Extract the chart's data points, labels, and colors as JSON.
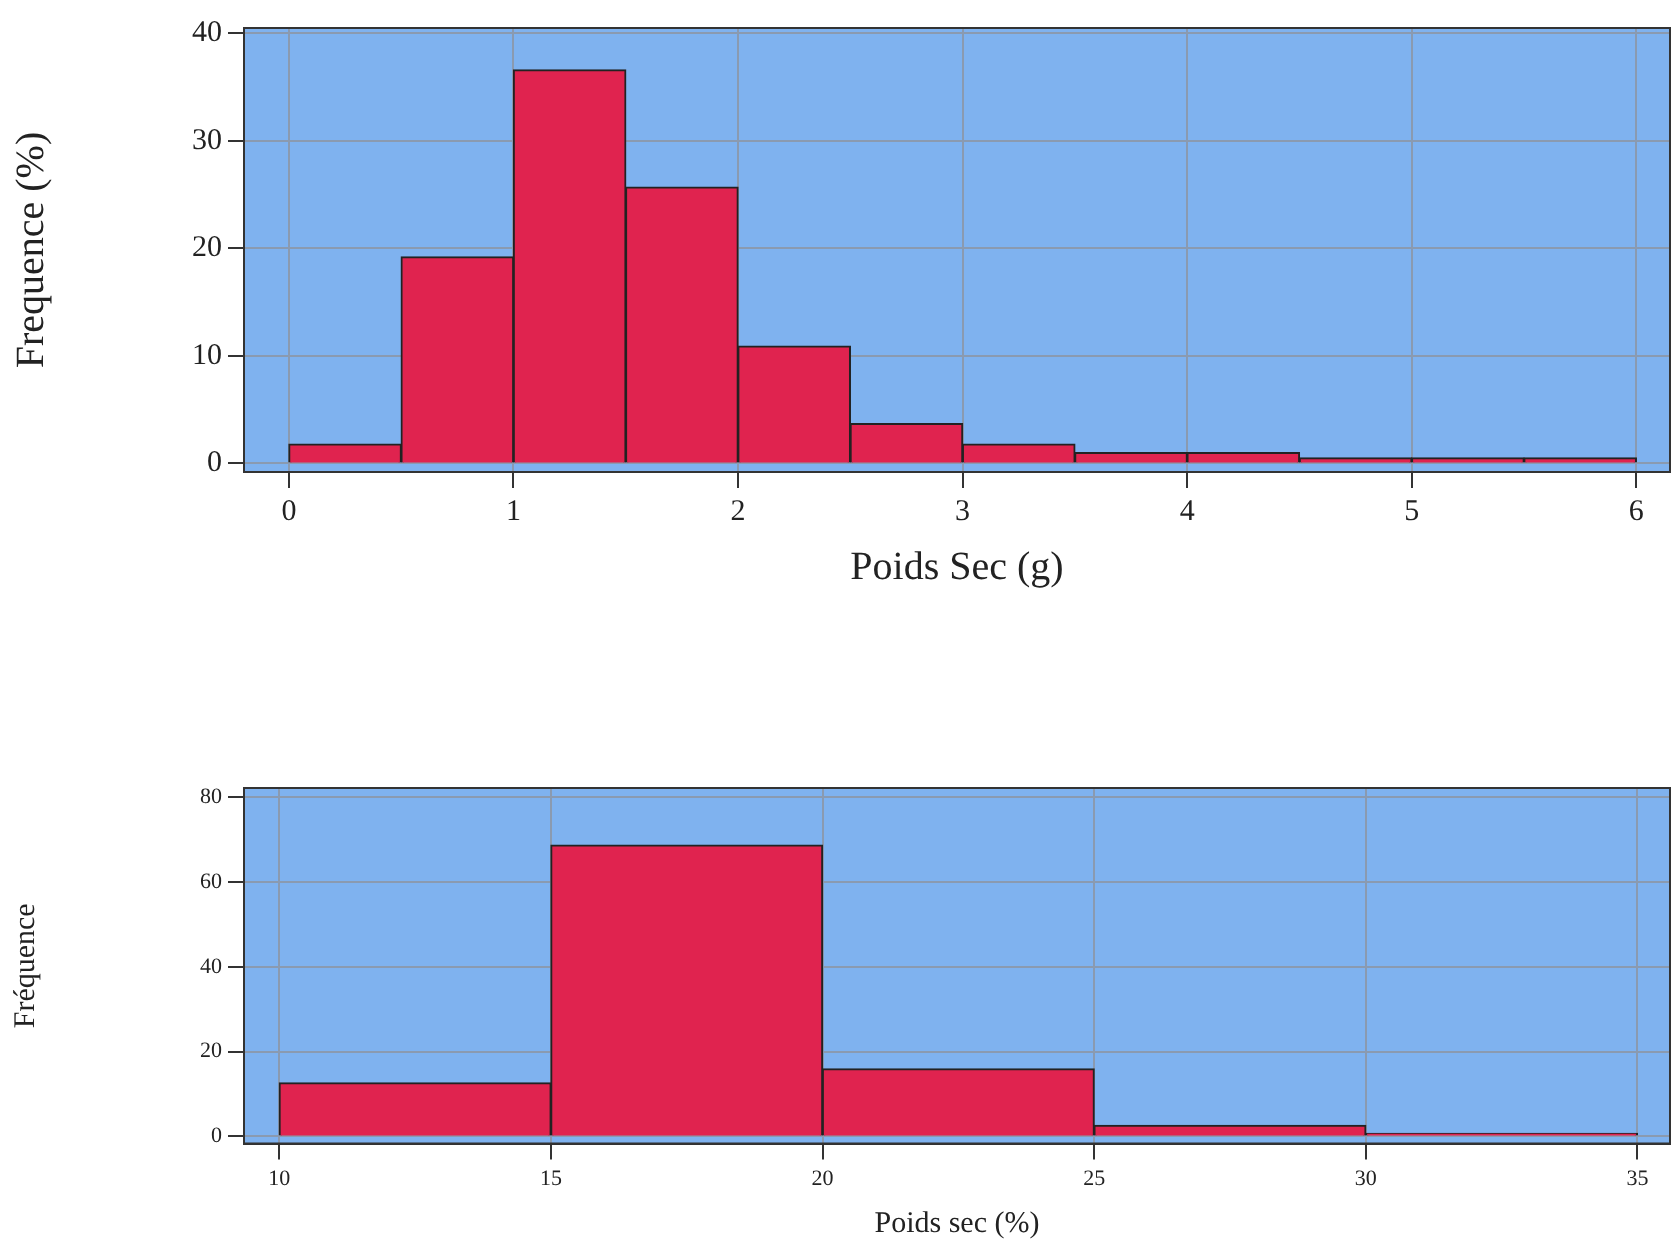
{
  "chart_data": [
    {
      "type": "histogram",
      "xlabel": "Poids Sec (g)",
      "ylabel": "Frequence (%)",
      "bins": [
        0,
        0.5,
        1,
        1.5,
        2,
        2.5,
        3,
        3.5,
        4,
        4.5,
        5,
        5.5,
        6
      ],
      "values": [
        1.8,
        19.2,
        36.6,
        25.7,
        10.9,
        3.7,
        1.8,
        1.0,
        1.0,
        0.5,
        0.5,
        0.5
      ],
      "color": "#e0234f",
      "xlim": [
        -0.2,
        6.15
      ],
      "xticks": [
        0,
        1,
        2,
        3,
        4,
        5,
        6
      ],
      "ylim": [
        -0.8,
        40.5
      ],
      "yticks": [
        0,
        10,
        20,
        30,
        40
      ],
      "grid": true
    },
    {
      "type": "histogram",
      "xlabel": "Poids sec (%)",
      "ylabel": "Fréquence",
      "bins": [
        10,
        15,
        20,
        25,
        30,
        35
      ],
      "values": [
        12.6,
        68.7,
        15.9,
        2.6,
        0.7
      ],
      "color": "#e0234f",
      "xlim": [
        9.35,
        35.6
      ],
      "xticks": [
        10,
        15,
        20,
        25,
        30,
        35
      ],
      "ylim": [
        -1.7,
        82.2
      ],
      "yticks": [
        0,
        20,
        40,
        60,
        80
      ],
      "grid": true
    }
  ]
}
